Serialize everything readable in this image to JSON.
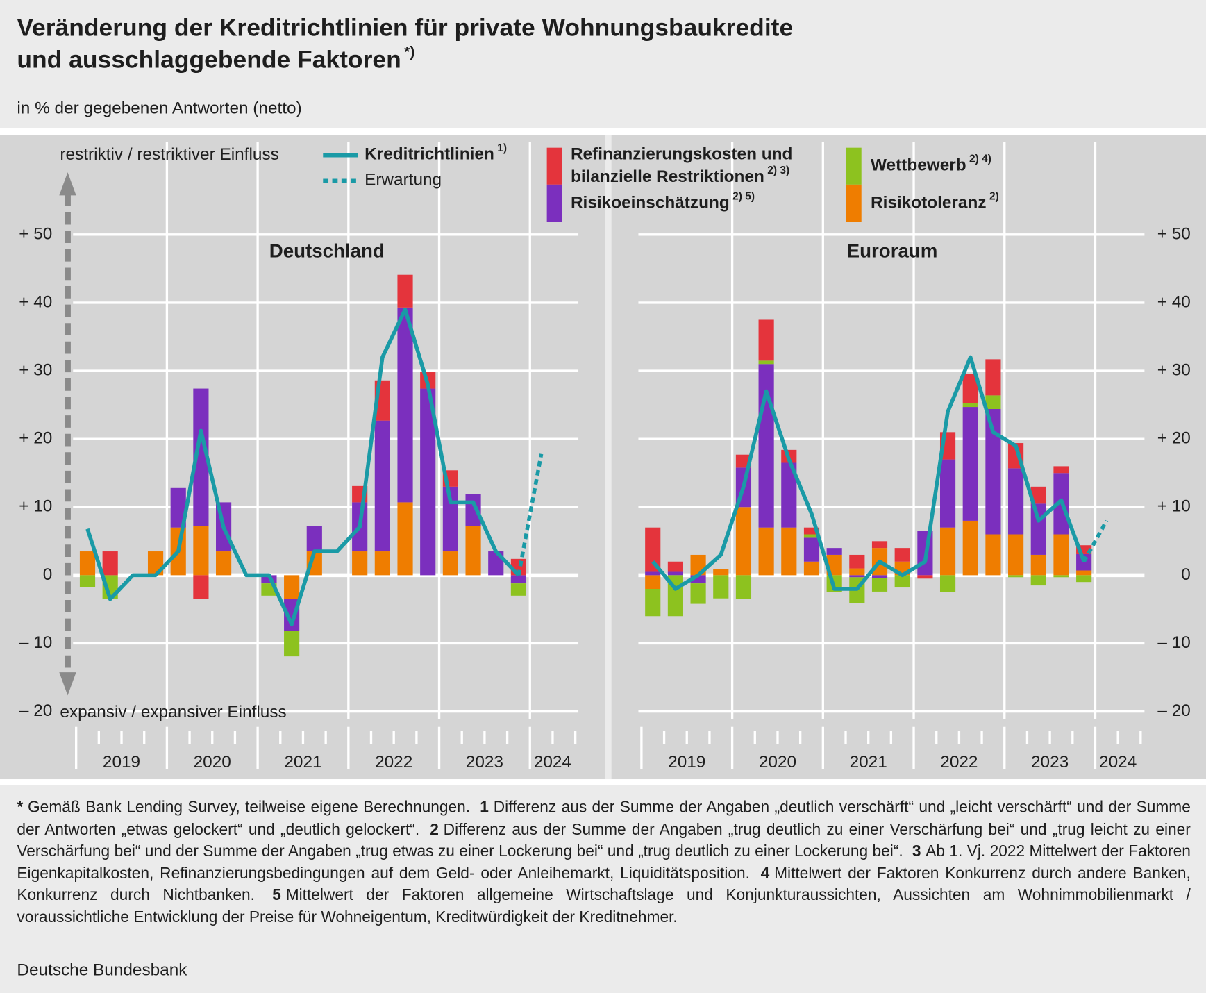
{
  "title": [
    "Veränderung der Kreditrichtlinien für private Wohnungsbaukredite",
    "und ausschlaggebende Faktoren"
  ],
  "title_note": "*)",
  "subtitle": "in % der gegebenen Antworten (netto)",
  "legend": [
    {
      "name": "Kreditrichtlinien",
      "note": "1)",
      "color": "#1a9aa6"
    },
    {
      "name": "Erwartung",
      "color": "#1a9aa6",
      "dashed": true
    },
    {
      "name": [
        "Refinanzierungskosten und",
        "bilanzielle Restriktionen"
      ],
      "note": "2) 3)",
      "color": "#e4343c"
    },
    {
      "name": "Risikoeinschätzung",
      "note": "2) 5)",
      "color": "#7b2fbe"
    },
    {
      "name": "Wettbewerb",
      "note": "2) 4)",
      "color": "#8dc21f"
    },
    {
      "name": "Risikotoleranz",
      "note": "2)",
      "color": "#ef7d00"
    }
  ],
  "chart_data": [
    {
      "type": "bar",
      "title": "Deutschland",
      "ylabel_top": "restriktiv / restriktiver Einfluss",
      "ylabel_bottom": "expansiv / expansiver Einfluss",
      "x_labels": [
        "2019",
        "2020",
        "2021",
        "2022",
        "2023",
        "2024"
      ],
      "ylim": [
        -20,
        50
      ],
      "yticks": [
        {
          "value": -20,
          "label": "– 20"
        },
        {
          "value": -10,
          "label": "– 10"
        },
        0,
        {
          "value": 10,
          "label": "+ 10"
        },
        {
          "value": 20,
          "label": "+ 20"
        },
        {
          "value": 30,
          "label": "+ 30"
        },
        {
          "value": 40,
          "label": "+ 40"
        },
        {
          "value": 50,
          "label": "+ 50"
        }
      ],
      "grid": true,
      "series": [
        {
          "type": "line",
          "values": [
            6.8,
            -3.5,
            0,
            0,
            3.5,
            21.2,
            7,
            0,
            0,
            -7.2,
            3.5,
            3.5,
            7.1,
            32,
            39,
            28,
            10.7,
            10.7,
            3.5,
            0,
            null
          ]
        },
        {
          "type": "line",
          "values": [
            null,
            null,
            null,
            null,
            null,
            null,
            null,
            null,
            null,
            null,
            null,
            null,
            null,
            null,
            null,
            null,
            null,
            null,
            null,
            0,
            17.8
          ]
        },
        {
          "type": "bar",
          "values": [
            0,
            3.5,
            0,
            0,
            0,
            -3.5,
            0,
            0,
            0,
            0,
            0,
            0,
            2.4,
            5.9,
            4.8,
            2.4,
            2.4,
            0,
            0,
            2.4,
            null
          ]
        },
        {
          "type": "bar",
          "values": [
            0,
            0,
            0,
            0,
            5.8,
            20.2,
            7.2,
            0,
            -1.2,
            -4.7,
            3.7,
            0,
            7.2,
            19.2,
            28.6,
            27.4,
            9.5,
            4.7,
            3.5,
            -1.2,
            null
          ]
        },
        {
          "type": "bar",
          "values": [
            -1.7,
            -3.5,
            0,
            0,
            0,
            0,
            0,
            0,
            -1.8,
            -3.7,
            0,
            0,
            0,
            0,
            0,
            0,
            0,
            0,
            0,
            -1.8,
            null
          ]
        },
        {
          "type": "bar",
          "values": [
            3.5,
            0,
            0,
            3.5,
            7,
            7.2,
            3.5,
            0,
            0,
            -3.5,
            3.5,
            0,
            3.5,
            3.5,
            10.7,
            0,
            3.5,
            7.2,
            0,
            0,
            null
          ]
        }
      ]
    },
    {
      "type": "bar",
      "title": "Euroraum",
      "x_labels": [
        "2019",
        "2020",
        "2021",
        "2022",
        "2023",
        "2024"
      ],
      "ylim": [
        -20,
        50
      ],
      "yticks": [
        {
          "value": -20,
          "label": "– 20"
        },
        {
          "value": -10,
          "label": "– 10"
        },
        0,
        {
          "value": 10,
          "label": "+ 10"
        },
        {
          "value": 20,
          "label": "+ 20"
        },
        {
          "value": 30,
          "label": "+ 30"
        },
        {
          "value": 40,
          "label": "+ 40"
        },
        {
          "value": 50,
          "label": "+ 50"
        }
      ],
      "grid": true,
      "series": [
        {
          "type": "line",
          "values": [
            2,
            -2,
            0,
            3,
            13,
            27,
            17,
            9,
            -2,
            -2,
            2,
            0,
            2,
            24,
            32,
            21,
            19,
            8,
            11,
            2,
            null
          ]
        },
        {
          "type": "line",
          "values": [
            null,
            null,
            null,
            null,
            null,
            null,
            null,
            null,
            null,
            null,
            null,
            null,
            null,
            null,
            null,
            null,
            null,
            null,
            null,
            2,
            8
          ]
        },
        {
          "type": "bar",
          "values": [
            6.5,
            1.5,
            0,
            0,
            1.9,
            6,
            1.9,
            1,
            0,
            2,
            1,
            2,
            -0.5,
            4,
            4.2,
            5.3,
            3.7,
            2.5,
            1,
            1.3,
            null
          ]
        },
        {
          "type": "bar",
          "values": [
            0.5,
            0.5,
            -1.2,
            0,
            5.8,
            24,
            9.5,
            3.5,
            1,
            -0.3,
            -0.4,
            0,
            6.5,
            10,
            16.7,
            18.4,
            9.7,
            7.5,
            9,
            2.4,
            null
          ]
        },
        {
          "type": "bar",
          "values": [
            -4,
            -6,
            -3,
            -3.4,
            -3.5,
            0.5,
            0,
            0.5,
            -2.5,
            -3.8,
            -2,
            -1.8,
            0,
            -2.5,
            0.6,
            2,
            -0.3,
            -1.5,
            -0.3,
            -1,
            null
          ]
        },
        {
          "type": "bar",
          "values": [
            -2,
            0,
            3,
            0.9,
            10,
            7,
            7,
            2,
            3,
            1,
            4,
            2,
            0,
            7,
            8,
            6,
            6,
            3,
            6,
            0.7,
            null
          ]
        }
      ]
    }
  ],
  "footnotes": [
    {
      "marker": "*",
      "text": "Gemäß Bank Lending Survey, teilweise eigene Berechnungen."
    },
    {
      "marker": "1",
      "text": "Differenz aus der Summe der Angaben „deutlich verschärft“ und „leicht verschärft“ und der Summe der Antworten „etwas gelockert“ und „deutlich gelockert“."
    },
    {
      "marker": "2",
      "text": "Differenz aus der Summe der Angaben „trug deutlich zu einer Verschärfung bei“ und „trug leicht zu einer Verschärfung bei“ und der Summe der Angaben „trug etwas zu einer Lockerung bei“ und „trug deutlich zu einer Lockerung bei“."
    },
    {
      "marker": "3",
      "text": "Ab 1. Vj. 2022 Mittelwert der Faktoren Eigenkapitalkosten, Refinanzierungsbedingungen auf dem Geld- oder Anleihemarkt, Liquiditätsposition."
    },
    {
      "marker": "4",
      "text": "Mittelwert der Faktoren Konkurrenz durch andere Banken, Konkurrenz durch Nichtbanken."
    },
    {
      "marker": "5",
      "text": "Mittelwert der Faktoren allgemeine Wirtschaftslage und Konjunkturaussichten, Aussichten am Wohnimmobilienmarkt / voraussichtliche Entwicklung der Preise für Wohneigentum, Kreditwürdigkeit der Kreditnehmer."
    }
  ],
  "source": "Deutsche Bundesbank"
}
